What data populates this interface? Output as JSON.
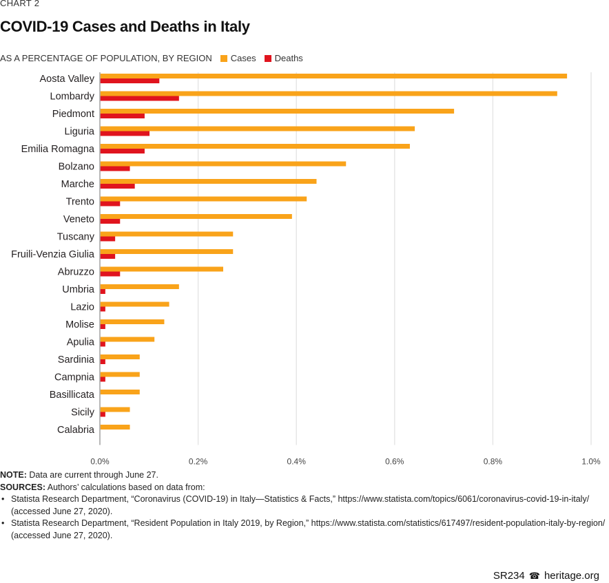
{
  "header": {
    "kicker": "CHART 2",
    "title": "COVID-19 Cases and Deaths in Italy",
    "subtitle": "AS A PERCENTAGE OF POPULATION, BY REGION"
  },
  "colors": {
    "cases": "#f9a31a",
    "deaths": "#e0141e",
    "grid": "#e6e6e6",
    "axis": "#a0a0a0"
  },
  "chart_data": {
    "type": "bar",
    "orientation": "horizontal",
    "title": "COVID-19 Cases and Deaths in Italy",
    "subtitle": "AS A PERCENTAGE OF POPULATION, BY REGION",
    "xlabel": "",
    "ylabel": "",
    "xlim": [
      0,
      1.0
    ],
    "x_ticks": [
      0,
      0.2,
      0.4,
      0.6,
      0.8,
      1.0
    ],
    "x_tick_labels": [
      "0.0%",
      "0.2%",
      "0.4%",
      "0.6%",
      "0.8%",
      "1.0%"
    ],
    "grid": true,
    "legend_position": "top-inline",
    "categories": [
      "Aosta Valley",
      "Lombardy",
      "Piedmont",
      "Liguria",
      "Emilia Romagna",
      "Bolzano",
      "Marche",
      "Trento",
      "Veneto",
      "Tuscany",
      "Fruili-Venzia Giulia",
      "Abruzzo",
      "Umbria",
      "Lazio",
      "Molise",
      "Apulia",
      "Sardinia",
      "Campnia",
      "Basillicata",
      "Sicily",
      "Calabria"
    ],
    "series": [
      {
        "name": "Cases",
        "values": [
          0.95,
          0.93,
          0.72,
          0.64,
          0.63,
          0.5,
          0.44,
          0.42,
          0.39,
          0.27,
          0.27,
          0.25,
          0.16,
          0.14,
          0.13,
          0.11,
          0.08,
          0.08,
          0.08,
          0.06,
          0.06
        ]
      },
      {
        "name": "Deaths",
        "values": [
          0.12,
          0.16,
          0.09,
          0.1,
          0.09,
          0.06,
          0.07,
          0.04,
          0.04,
          0.03,
          0.03,
          0.04,
          0.01,
          0.01,
          0.01,
          0.01,
          0.01,
          0.01,
          0.0,
          0.01,
          0.0
        ]
      }
    ]
  },
  "notes": {
    "note_label": "NOTE:",
    "note_text": " Data are current through June 27.",
    "sources_label": "SOURCES:",
    "sources_text": " Authors’ calculations based on data from:",
    "source_1": "Statista Research Department, “Coronavirus (COVID-19) in Italy—Statistics & Facts,” https://www.statista.com/topics/6061/coronavirus-covid-19-in-italy/ (accessed June 27, 2020).",
    "source_2": "Statista Research Department, “Resident Population in Italy 2019, by Region,” https://www.statista.com/statistics/617497/resident-population-italy-by-region/ (accessed June 27, 2020)."
  },
  "footer": {
    "report_id": "SR234",
    "bell_icon": "☎",
    "site": "heritage.org"
  }
}
